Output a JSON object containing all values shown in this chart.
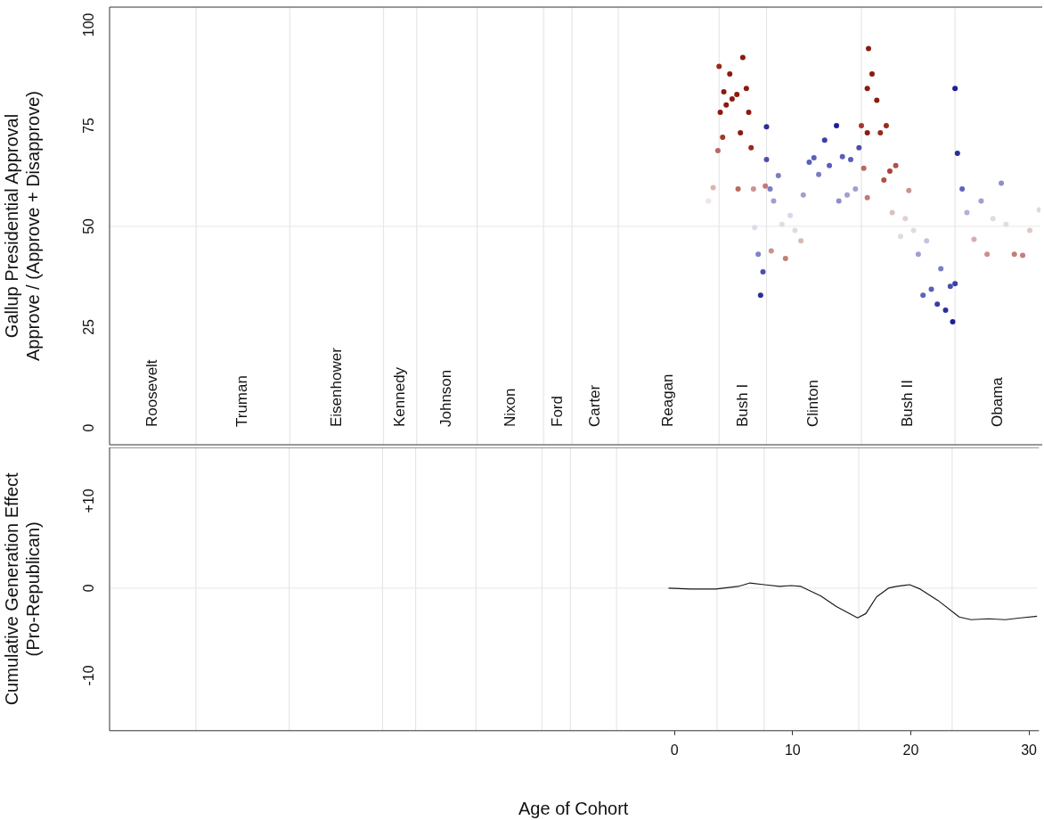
{
  "chart_data": [
    {
      "type": "scatter",
      "ylabel": "Gallup Presidential Approval\nApprove / (Approve + Disapprove)",
      "marker": "circle",
      "tick_labels": "y",
      "xlim": [
        -47.8,
        30.7
      ],
      "ylim": [
        -4.2,
        104.4
      ],
      "yticks": [
        0,
        25,
        50,
        75,
        100
      ],
      "x": [
        2.7,
        3.1,
        3.5,
        3.6,
        3.7,
        3.9,
        4.0,
        4.2,
        4.5,
        4.7,
        5.1,
        5.2,
        5.4,
        5.6,
        5.9,
        6.1,
        6.3,
        6.5,
        6.6,
        6.9,
        7.1,
        7.3,
        7.5,
        7.6,
        7.6,
        7.9,
        8.0,
        8.2,
        8.6,
        8.9,
        9.2,
        9.6,
        10.0,
        10.5,
        10.7,
        11.2,
        11.6,
        12.0,
        12.5,
        12.9,
        13.5,
        13.7,
        14.0,
        14.4,
        14.7,
        15.1,
        15.4,
        15.6,
        15.8,
        16.1,
        16.2,
        16.1,
        16.1,
        16.5,
        16.9,
        17.2,
        17.5,
        17.7,
        18.0,
        18.2,
        18.5,
        18.9,
        19.3,
        19.6,
        20.0,
        20.4,
        20.8,
        21.1,
        21.5,
        22.0,
        22.3,
        22.7,
        23.1,
        23.3,
        23.5,
        23.5,
        23.7,
        24.1,
        24.5,
        25.1,
        25.7,
        26.2,
        26.7,
        27.4,
        27.8,
        28.5,
        29.2,
        29.8,
        30.6
      ],
      "values": [
        56.3,
        59.6,
        68.8,
        89.7,
        78.3,
        72.1,
        83.4,
        80.1,
        87.8,
        81.6,
        82.7,
        59.3,
        73.2,
        91.9,
        84.2,
        78.3,
        69.5,
        59.3,
        49.7,
        43.1,
        32.9,
        38.7,
        60.0,
        74.7,
        66.6,
        59.3,
        43.9,
        56.3,
        62.6,
        50.5,
        42.0,
        52.7,
        49.0,
        46.4,
        57.8,
        65.9,
        67.0,
        62.9,
        71.4,
        65.1,
        75.0,
        56.3,
        67.3,
        57.8,
        66.6,
        59.3,
        69.5,
        75.0,
        64.4,
        57.1,
        94.1,
        84.2,
        73.2,
        87.8,
        81.3,
        73.2,
        61.5,
        75.0,
        63.7,
        53.4,
        65.1,
        47.5,
        51.9,
        58.9,
        49.0,
        43.1,
        32.9,
        46.4,
        34.4,
        30.7,
        39.5,
        29.2,
        35.1,
        26.3,
        35.8,
        84.2,
        68.1,
        59.3,
        53.4,
        46.8,
        56.3,
        43.1,
        51.9,
        60.7,
        50.5,
        43.1,
        42.8,
        49.0,
        54.1
      ],
      "colors": [
        "#f0e4e4",
        "#dcb4b0",
        "#b86a62",
        "#9a2a1c",
        "#8b1a0e",
        "#a0382c",
        "#8b1a0e",
        "#8b1a0e",
        "#8b1a0e",
        "#8b1a0e",
        "#8b1a0e",
        "#b86a62",
        "#8b1a0e",
        "#8b1a0e",
        "#8b1a0e",
        "#8b1a0e",
        "#9a2a1c",
        "#c99490",
        "#dcdce8",
        "#8084c4",
        "#2a2f9a",
        "#4a4fae",
        "#c47a72",
        "#2a2f9a",
        "#4a4fae",
        "#7a7ec0",
        "#c99490",
        "#9ea0d0",
        "#7a7ec0",
        "#e0dce0",
        "#c08078",
        "#d8d8e8",
        "#e4dcdc",
        "#d8b8b4",
        "#9ea0d0",
        "#5a5fb8",
        "#5a5fb8",
        "#7a7ec0",
        "#3a3fa6",
        "#5a5fb8",
        "#1a1f96",
        "#8c90c8",
        "#5a5fb8",
        "#9ea0d0",
        "#5a5fb8",
        "#9ea0d0",
        "#4a4fae",
        "#a0382c",
        "#b86a62",
        "#c47a72",
        "#8b1a0e",
        "#8b1a0e",
        "#8b1a0e",
        "#8b1a0e",
        "#8b1a0e",
        "#9a2a1c",
        "#b05048",
        "#9a2a1c",
        "#a84438",
        "#dcc0bc",
        "#b05048",
        "#e0dce0",
        "#e0d0d0",
        "#c99490",
        "#e0dce4",
        "#9ea0d0",
        "#6064b8",
        "#c4c4e0",
        "#5a5fb8",
        "#3a3fa6",
        "#7a7ec0",
        "#2a2f9a",
        "#4a4fae",
        "#1a1f96",
        "#3a3fa6",
        "#1a1f96",
        "#2a2f9a",
        "#6064b8",
        "#b0b2dc",
        "#d4b0ac",
        "#9ea0d0",
        "#c8908a",
        "#e0dce4",
        "#8c90c8",
        "#e4dcdc",
        "#c08078",
        "#c08078",
        "#e0c8c4",
        "#dcd8e4"
      ],
      "ref_lines": [
        {
          "axis": "y",
          "value": 50,
          "color": "#ebebeb"
        },
        {
          "axis": "x",
          "value": -40.5,
          "color": "#e6e6e6"
        },
        {
          "axis": "x",
          "value": -32.6,
          "color": "#e6e6e6"
        },
        {
          "axis": "x",
          "value": -24.7,
          "color": "#e6e6e6"
        },
        {
          "axis": "x",
          "value": -21.9,
          "color": "#e6e6e6"
        },
        {
          "axis": "x",
          "value": -16.8,
          "color": "#e6e6e6"
        },
        {
          "axis": "x",
          "value": -11.2,
          "color": "#e6e6e6"
        },
        {
          "axis": "x",
          "value": -8.8,
          "color": "#e6e6e6"
        },
        {
          "axis": "x",
          "value": -4.9,
          "color": "#e6e6e6"
        },
        {
          "axis": "x",
          "value": 3.6,
          "color": "#e6e6e6"
        },
        {
          "axis": "x",
          "value": 7.6,
          "color": "#e6e6e6"
        },
        {
          "axis": "x",
          "value": 15.6,
          "color": "#e6e6e6"
        },
        {
          "axis": "x",
          "value": 23.5,
          "color": "#e6e6e6"
        }
      ],
      "annotations": [
        "Roosevelt",
        "Truman",
        "Eisenhower",
        "Kennedy",
        "Johnson",
        "Nixon",
        "Ford",
        "Carter",
        "Reagan",
        "Bush I",
        "Clinton",
        "Bush II",
        "Obama"
      ]
    },
    {
      "type": "line",
      "xlabel": "Age of Cohort",
      "ylabel": "Cumulative Generation Effect\n(Pro-Republican)",
      "marker": "none",
      "line_style": "solid",
      "color": "#1a1a1a",
      "xlim": [
        -47.8,
        30.7
      ],
      "xticks": [
        0,
        10,
        20,
        30
      ],
      "ylim": [
        -16.3,
        16.1
      ],
      "yticks": [
        -10,
        0,
        {
          "value": 10,
          "label": "+10"
        }
      ],
      "x": [
        -0.5,
        1.4,
        3.5,
        5.4,
        6.4,
        7.6,
        8.9,
        9.9,
        10.7,
        12.4,
        13.7,
        15.5,
        16.2,
        17.1,
        18.1,
        18.8,
        19.9,
        20.8,
        22.3,
        24.1,
        25.1,
        26.6,
        28.0,
        29.3,
        30.7
      ],
      "values": [
        0.0,
        -0.1,
        -0.1,
        0.2,
        0.6,
        0.4,
        0.2,
        0.3,
        0.2,
        -0.9,
        -2.1,
        -3.4,
        -2.9,
        -1.0,
        0.0,
        0.2,
        0.4,
        -0.1,
        -1.4,
        -3.3,
        -3.6,
        -3.5,
        -3.6,
        -3.4,
        -3.2
      ],
      "ref_lines": [
        {
          "axis": "y",
          "value": 0,
          "color": "#ebebeb"
        },
        {
          "axis": "x",
          "value": -40.5,
          "color": "#e6e6e6"
        },
        {
          "axis": "x",
          "value": -32.6,
          "color": "#e6e6e6"
        },
        {
          "axis": "x",
          "value": -24.7,
          "color": "#e6e6e6"
        },
        {
          "axis": "x",
          "value": -21.9,
          "color": "#e6e6e6"
        },
        {
          "axis": "x",
          "value": -16.8,
          "color": "#e6e6e6"
        },
        {
          "axis": "x",
          "value": -11.2,
          "color": "#e6e6e6"
        },
        {
          "axis": "x",
          "value": -8.8,
          "color": "#e6e6e6"
        },
        {
          "axis": "x",
          "value": -4.9,
          "color": "#e6e6e6"
        },
        {
          "axis": "x",
          "value": 3.6,
          "color": "#e6e6e6"
        },
        {
          "axis": "x",
          "value": 7.6,
          "color": "#e6e6e6"
        },
        {
          "axis": "x",
          "value": 15.6,
          "color": "#e6e6e6"
        },
        {
          "axis": "x",
          "value": 23.5,
          "color": "#e6e6e6"
        }
      ]
    }
  ]
}
